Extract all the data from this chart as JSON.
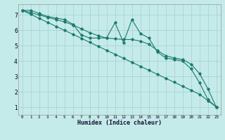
{
  "xlabel": "Humidex (Indice chaleur)",
  "bg_color": "#c5eaea",
  "grid_color": "#aad4d4",
  "line_color": "#1a7a6e",
  "xlim": [
    -0.5,
    23.5
  ],
  "ylim": [
    0.5,
    7.7
  ],
  "xtick_labels": [
    "0",
    "1",
    "2",
    "3",
    "4",
    "5",
    "6",
    "7",
    "8",
    "9",
    "10",
    "11",
    "12",
    "13",
    "14",
    "15",
    "16",
    "17",
    "18",
    "19",
    "20",
    "21",
    "22",
    "23"
  ],
  "ytick_labels": [
    "1",
    "2",
    "3",
    "4",
    "5",
    "6",
    "7"
  ],
  "series_wavy": [
    7.3,
    7.3,
    7.1,
    6.9,
    6.8,
    6.7,
    6.4,
    5.7,
    5.5,
    5.5,
    5.5,
    6.5,
    5.2,
    6.7,
    5.8,
    5.5,
    4.6,
    4.2,
    4.1,
    4.0,
    3.5,
    2.6,
    1.5,
    1.0
  ],
  "series_smooth1": [
    7.3,
    7.15,
    7.0,
    6.85,
    6.7,
    6.55,
    6.35,
    6.1,
    5.85,
    5.65,
    5.5,
    5.45,
    5.4,
    5.4,
    5.3,
    5.1,
    4.7,
    4.35,
    4.2,
    4.1,
    3.8,
    3.2,
    2.2,
    1.0
  ],
  "series_straight": [
    7.3,
    7.04,
    6.78,
    6.52,
    6.26,
    6.0,
    5.74,
    5.48,
    5.22,
    4.96,
    4.7,
    4.44,
    4.18,
    3.92,
    3.66,
    3.4,
    3.14,
    2.88,
    2.62,
    2.36,
    2.1,
    1.84,
    1.43,
    1.0
  ]
}
